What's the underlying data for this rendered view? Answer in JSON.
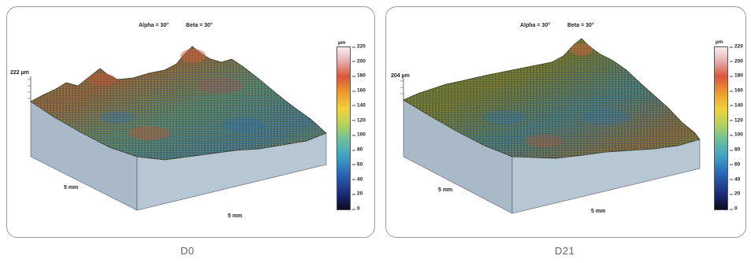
{
  "panels": [
    {
      "angle_alpha": "Alpha = 30°",
      "angle_beta": "Beta = 30°",
      "z_max": "222 µm",
      "x_axis": "5 mm",
      "y_axis": "5 mm",
      "colorbar_unit": "µm",
      "colorbar_ticks": [
        "220",
        "200",
        "180",
        "160",
        "140",
        "120",
        "100",
        "80",
        "60",
        "40",
        "20",
        "0"
      ],
      "caption": "D0"
    },
    {
      "angle_alpha": "Alpha = 30°",
      "angle_beta": "Beta = 30°",
      "z_max": "204 µm",
      "x_axis": "5 mm",
      "y_axis": "5 mm",
      "colorbar_unit": "µm",
      "colorbar_ticks": [
        "220",
        "200",
        "180",
        "160",
        "140",
        "120",
        "100",
        "80",
        "60",
        "40",
        "20",
        "0"
      ],
      "caption": "D21"
    }
  ],
  "colors": {
    "base_fill": "#a9b9c8",
    "border": "#9a9a9a",
    "caption": "#666666"
  }
}
